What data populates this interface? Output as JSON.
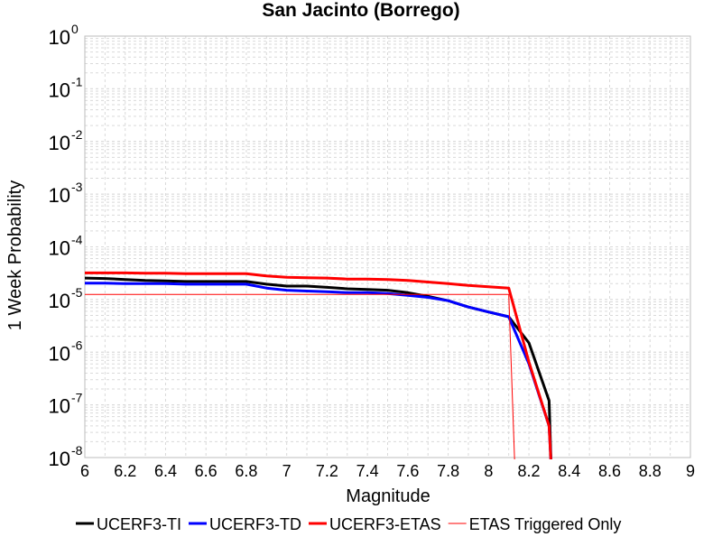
{
  "chart_data": {
    "type": "line",
    "title": "San Jacinto (Borrego)",
    "xlabel": "Magnitude",
    "ylabel": "1 Week Probability",
    "xlim": [
      6,
      9
    ],
    "ylim": [
      1e-08,
      1
    ],
    "yscale": "log",
    "grid": true,
    "legend_position": "bottom",
    "x_ticks": [
      "6",
      "6.2",
      "6.4",
      "6.6",
      "6.8",
      "7",
      "7.2",
      "7.4",
      "7.6",
      "7.8",
      "8",
      "8.2",
      "8.4",
      "8.6",
      "8.8",
      "9"
    ],
    "y_ticks": [
      {
        "base": "10",
        "exp": "0",
        "value": 1
      },
      {
        "base": "10",
        "exp": "-1",
        "value": 0.1
      },
      {
        "base": "10",
        "exp": "-2",
        "value": 0.01
      },
      {
        "base": "10",
        "exp": "-3",
        "value": 0.001
      },
      {
        "base": "10",
        "exp": "-4",
        "value": 0.0001
      },
      {
        "base": "10",
        "exp": "-5",
        "value": 1e-05
      },
      {
        "base": "10",
        "exp": "-6",
        "value": 1e-06
      },
      {
        "base": "10",
        "exp": "-7",
        "value": 1e-07
      },
      {
        "base": "10",
        "exp": "-8",
        "value": 1e-08
      }
    ],
    "series": [
      {
        "name": "UCERF3-TI",
        "color": "#000000",
        "width": 3,
        "x": [
          6.0,
          6.1,
          6.2,
          6.3,
          6.4,
          6.5,
          6.6,
          6.7,
          6.8,
          6.9,
          7.0,
          7.1,
          7.2,
          7.3,
          7.4,
          7.5,
          7.6,
          7.7,
          7.8,
          7.9,
          8.0,
          8.1,
          8.2,
          8.3,
          8.31
        ],
        "y": [
          2.55e-05,
          2.5e-05,
          2.4e-05,
          2.3e-05,
          2.25e-05,
          2.2e-05,
          2.2e-05,
          2.2e-05,
          2.2e-05,
          1.95e-05,
          1.8e-05,
          1.8e-05,
          1.7e-05,
          1.6e-05,
          1.55e-05,
          1.5e-05,
          1.35e-05,
          1.15e-05,
          9.5e-06,
          7.2e-06,
          5.8e-06,
          4.7e-06,
          1.5e-06,
          1.2e-07,
          7e-09
        ]
      },
      {
        "name": "UCERF3-TD",
        "color": "#0000ff",
        "width": 3,
        "x": [
          6.0,
          6.1,
          6.2,
          6.3,
          6.4,
          6.5,
          6.6,
          6.7,
          6.8,
          6.9,
          7.0,
          7.1,
          7.2,
          7.3,
          7.4,
          7.5,
          7.6,
          7.7,
          7.8,
          7.9,
          8.0,
          8.1,
          8.2,
          8.3,
          8.31
        ],
        "y": [
          2.05e-05,
          2.05e-05,
          2e-05,
          2e-05,
          2e-05,
          1.95e-05,
          1.95e-05,
          1.95e-05,
          1.95e-05,
          1.65e-05,
          1.5e-05,
          1.45e-05,
          1.4e-05,
          1.35e-05,
          1.35e-05,
          1.3e-05,
          1.2e-05,
          1.1e-05,
          9.5e-06,
          7.2e-06,
          5.8e-06,
          4.7e-06,
          6e-07,
          4e-08,
          7e-09
        ]
      },
      {
        "name": "UCERF3-ETAS",
        "color": "#ff0000",
        "width": 3,
        "x": [
          6.0,
          6.1,
          6.2,
          6.3,
          6.4,
          6.5,
          6.6,
          6.7,
          6.8,
          6.9,
          7.0,
          7.1,
          7.2,
          7.3,
          7.4,
          7.5,
          7.6,
          7.7,
          7.8,
          7.9,
          8.0,
          8.1,
          8.2,
          8.3,
          8.31
        ],
        "y": [
          3.2e-05,
          3.2e-05,
          3.2e-05,
          3.15e-05,
          3.15e-05,
          3.1e-05,
          3.1e-05,
          3.1e-05,
          3.1e-05,
          2.8e-05,
          2.65e-05,
          2.6e-05,
          2.55e-05,
          2.45e-05,
          2.45e-05,
          2.4e-05,
          2.3e-05,
          2.15e-05,
          2e-05,
          1.85e-05,
          1.75e-05,
          1.65e-05,
          6.5e-07,
          4e-08,
          7e-09
        ]
      },
      {
        "name": "ETAS Triggered Only",
        "color": "#ff0000",
        "width": 1,
        "x": [
          6.0,
          8.1,
          8.13
        ],
        "y": [
          1.25e-05,
          1.25e-05,
          7e-09
        ]
      }
    ]
  }
}
